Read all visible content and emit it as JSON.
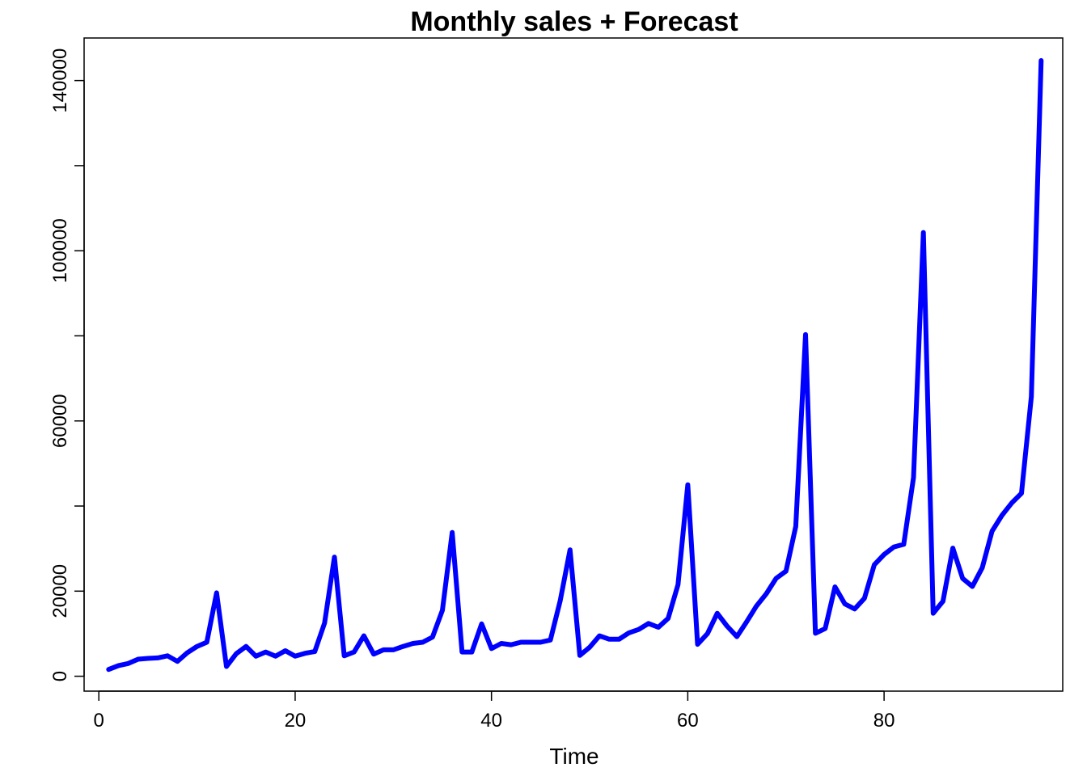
{
  "chart_data": {
    "type": "line",
    "title": "Monthly sales + Forecast",
    "xlabel": "Time",
    "ylabel": "",
    "xlim": [
      -1.5,
      98.2
    ],
    "ylim": [
      -3500,
      150000
    ],
    "x_ticks": [
      0,
      20,
      40,
      60,
      80
    ],
    "y_ticks": [
      0,
      20000,
      60000,
      100000,
      140000
    ],
    "y_minor_ticks": [
      40000,
      80000,
      120000
    ],
    "grid": false,
    "line_color": "#0000ff",
    "series": [
      {
        "x": [
          1,
          2,
          3,
          4,
          5,
          6,
          7,
          8,
          9,
          10,
          11,
          12,
          13,
          14,
          15,
          16,
          17,
          18,
          19,
          20,
          21,
          22,
          23,
          24,
          25,
          26,
          27,
          28,
          29,
          30,
          31,
          32,
          33,
          34,
          35,
          36,
          37,
          38,
          39,
          40,
          41,
          42,
          43,
          44,
          45,
          46,
          47,
          48,
          49,
          50,
          51,
          52,
          53,
          54,
          55,
          56,
          57,
          58,
          59,
          60,
          61,
          62,
          63,
          64,
          65,
          66,
          67,
          68,
          69,
          70,
          71,
          72,
          73,
          74,
          75,
          76,
          77,
          78,
          79,
          80,
          81,
          82,
          83,
          84,
          85,
          86,
          87,
          88,
          89,
          90,
          91,
          92,
          93,
          94,
          95,
          96
        ],
        "values": [
          1600,
          2500,
          3000,
          4000,
          4200,
          4300,
          4800,
          3500,
          5500,
          7000,
          8000,
          19600,
          2300,
          5300,
          7000,
          4700,
          5700,
          4700,
          6000,
          4700,
          5400,
          5800,
          12500,
          28000,
          4800,
          5700,
          9500,
          5200,
          6200,
          6200,
          7000,
          7700,
          8000,
          9200,
          15500,
          33800,
          5700,
          5700,
          12300,
          6500,
          7700,
          7400,
          8000,
          8000,
          8000,
          8500,
          17700,
          29700,
          4900,
          6800,
          9500,
          8700,
          8700,
          10200,
          11000,
          12400,
          11500,
          13600,
          21500,
          45000,
          7500,
          10000,
          14800,
          11800,
          9300,
          12800,
          16500,
          19400,
          23000,
          24700,
          35200,
          80300,
          10100,
          11200,
          21000,
          17000,
          15800,
          18300,
          26200,
          28600,
          30400,
          31000,
          46700,
          104300,
          14800,
          17600,
          30100,
          23000,
          21100,
          25500,
          34100,
          37800,
          40700,
          43000,
          65700,
          144700
        ]
      }
    ]
  }
}
